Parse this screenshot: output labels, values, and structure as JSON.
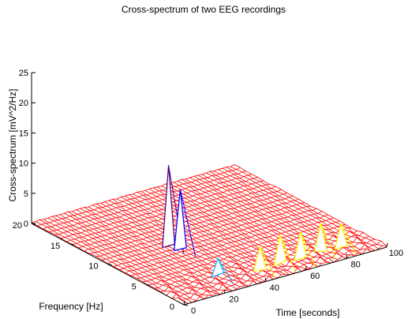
{
  "chart_data": {
    "type": "surface-3d-mesh",
    "title": "Cross-spectrum of two EEG recordings",
    "xlabel": "Time [seconds]",
    "ylabel": "Frequency [Hz]",
    "zlabel": "Cross-spectrum [mV^2/Hz]",
    "x_ticks": [
      "0",
      "20",
      "40",
      "60",
      "80",
      "100"
    ],
    "y_ticks": [
      "0",
      "5",
      "10",
      "15",
      "20"
    ],
    "z_ticks": [
      "0",
      "5",
      "10",
      "15",
      "20",
      "25"
    ],
    "xlim": [
      0,
      100
    ],
    "ylim": [
      0,
      20
    ],
    "zlim": [
      0,
      25
    ],
    "grid": false,
    "mesh_color": "#ff0000",
    "background": "#ffffff",
    "peaks": [
      {
        "time": 30,
        "frequency": 10,
        "value": 13.5,
        "color": "#4b0082"
      },
      {
        "time": 32,
        "frequency": 9,
        "value": 10,
        "color": "#0000ff"
      },
      {
        "time": 28,
        "frequency": 3,
        "value": 3,
        "color": "#00bfff"
      },
      {
        "time": 45,
        "frequency": 2,
        "value": 4,
        "color": "#ffff00"
      },
      {
        "time": 55,
        "frequency": 2,
        "value": 5,
        "color": "#ffff00"
      },
      {
        "time": 65,
        "frequency": 2,
        "value": 4.5,
        "color": "#ffff00"
      },
      {
        "time": 75,
        "frequency": 2,
        "value": 5,
        "color": "#ffff00"
      },
      {
        "time": 85,
        "frequency": 2,
        "value": 4,
        "color": "#ffff00"
      }
    ]
  }
}
